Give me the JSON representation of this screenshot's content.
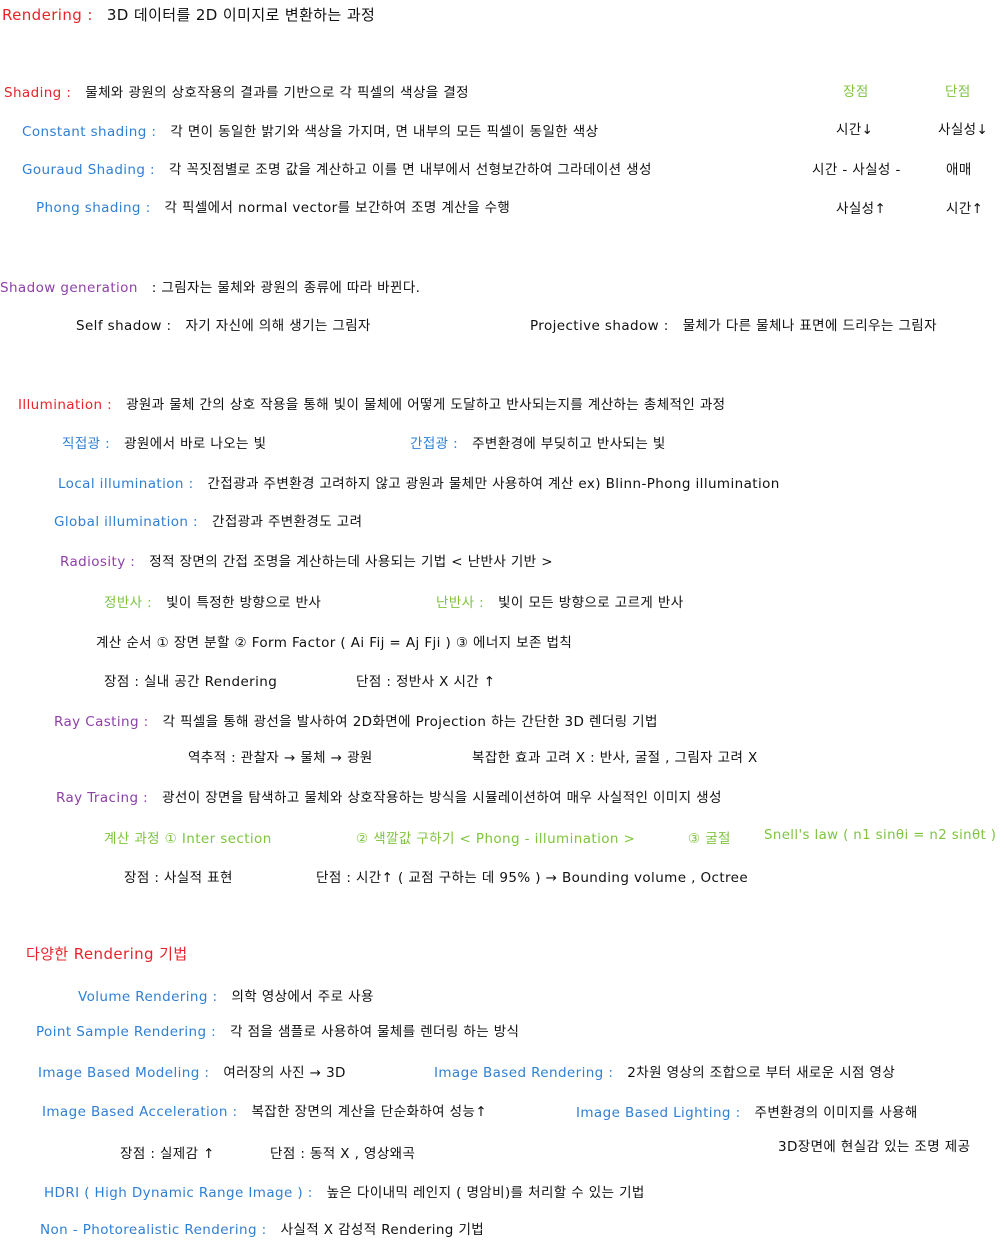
{
  "rendering": {
    "term": "Rendering :",
    "desc": "3D 데이터를   2D 이미지로   변환하는   과정"
  },
  "shading": {
    "term": "Shading :",
    "desc": "물체와  광원의  상호작용의  결과를  기반으로   각  픽셀의  색상을  결정",
    "pros_header": "장점",
    "cons_header": "단점",
    "items": [
      {
        "term": "Constant  shading :",
        "desc": "각  면이  동일한  밝기와  색상을  가지며,  면  내부의  모든  픽셀이  동일한  색상",
        "pro": "시간↓",
        "con": "사실성↓"
      },
      {
        "term": "Gouraud  Shading :",
        "desc": "각  꼭짓점별로   조명 값을   계산하고   이를  면  내부에서  선형보간하여   그라데이션 생성",
        "pro": "시간 - 사실성 -",
        "con": "애매"
      },
      {
        "term": "Phong  shading :",
        "desc": "각  픽셀에서   normal  vector를  보간하여   조명  계산을  수행",
        "pro": "사실성↑",
        "con": "시간↑"
      }
    ]
  },
  "shadow": {
    "term": "Shadow  generation",
    "desc": ": 그림자는   물체와   광원의   종류에  따라  바뀐다.",
    "self_term": "Self  shadow :",
    "self_desc": "자기  자신에  의해   생기는   그림자",
    "proj_term": "Projective  shadow :",
    "proj_desc": "물체가  다른  물체나  표면에  드리우는  그림자"
  },
  "illumination": {
    "term": "Illumination :",
    "desc": "광원과  물체  간의  상호 작용을  통해    빛이  물체에   어떻게  도달하고  반사되는지를   계산하는  총체적인  과정",
    "direct_term": "직접광 :",
    "direct_desc": "광원에서  바로   나오는   빛",
    "indirect_term": "간접광 :",
    "indirect_desc": "주변환경에  부딪히고  반사되는  빛",
    "local_term": "Local  illumination :",
    "local_desc": "간접광과   주변환경  고려하지  않고  광원과  물체만   사용하여  계산    ex) Blinn-Phong  illumination",
    "global_term": "Global  illumination :",
    "global_desc": "간접광과   주변환경도   고려"
  },
  "radiosity": {
    "term": "Radiosity :",
    "desc": "정적  장면의   간접 조명을   계산하는데   사용되는  기법      < 난반사 기반 >",
    "specular_term": "정반사 :",
    "specular_desc": "빛이  특정한  방향으로  반사",
    "diffuse_term": "난반사 :",
    "diffuse_desc": "빛이  모든  방향으로  고르게 반사",
    "steps": "계산 순서   ① 장면  분할     ② Form   Factor   ( Ai Fij = Aj Fji )    ③ 에너지  보존  법칙",
    "pros": "장점 :   실내 공간   Rendering",
    "cons": "단점 :  정반사 X  시간 ↑"
  },
  "ray_casting": {
    "term": "Ray  Casting :",
    "desc": "각  픽셀을   통해  광선을  발사하여    2D화면에    Projection 하는   간단한   3D  렌더링  기법",
    "reverse": "역추적 :   관찰자  →  물체  →  광원",
    "complex": "복잡한  효과  고려 X :   반사, 굴절 , 그림자   고려 X"
  },
  "ray_tracing": {
    "term": "Ray   Tracing :",
    "desc": "광선이    장면을   탐색하고    물체와   상호작용하는    방식을  시뮬레이션하여   매우   사실적인   이미지   생성",
    "step1": "계산  과정 ① Inter section",
    "step2": "② 색깔값  구하기  < Phong - illumination >",
    "step3": "③ 굴절",
    "snell": "Snell's   law   ( n1 sinθi = n2 sinθt )",
    "pros": "장점 :  사실적  표현",
    "cons": "단점 : 시간↑  ( 교점  구하는 데   95% )    → Bounding  volume ,  Octree"
  },
  "techniques": {
    "title": "다양한   Rendering  기법",
    "volume_term": "Volume   Rendering :",
    "volume_desc": "의학  영상에서  주로  사용",
    "point_term": "Point  Sample  Rendering :",
    "point_desc": "각  점을   샘플로   사용하여   물체를   렌더링 하는   방식",
    "ibm_term": "Image  Based   Modeling :",
    "ibm_desc": "여러장의  사진 →  3D",
    "ibr_term": "Image   Based     Rendering :",
    "ibr_desc": "2차원  영상의  조합으로 부터   새로운  시점 영상",
    "iba_term": "Image  Based   Acceleration :",
    "iba_desc": "복잡한  장면의 계산을  단순화하여  성능↑",
    "ibl_term": "Image   Based   Lighting :",
    "ibl_desc": "주변환경의  이미지를   사용해",
    "ibl_desc2": "3D장면에   현실감  있는  조명 제공",
    "ib_pros": "장점 :  실제감 ↑",
    "ib_cons": "단점 : 동적 X  ,  영상왜곡",
    "hdri_term": "HDRI  ( High   Dynamic   Range   Image ) :",
    "hdri_desc": "높은   다이내믹  레인지  ( 명암비)를    처리할   수   있는  기법",
    "npr_term": "Non - Photorealistic     Rendering :",
    "npr_desc": "사실적 X    감성적     Rendering  기법"
  }
}
